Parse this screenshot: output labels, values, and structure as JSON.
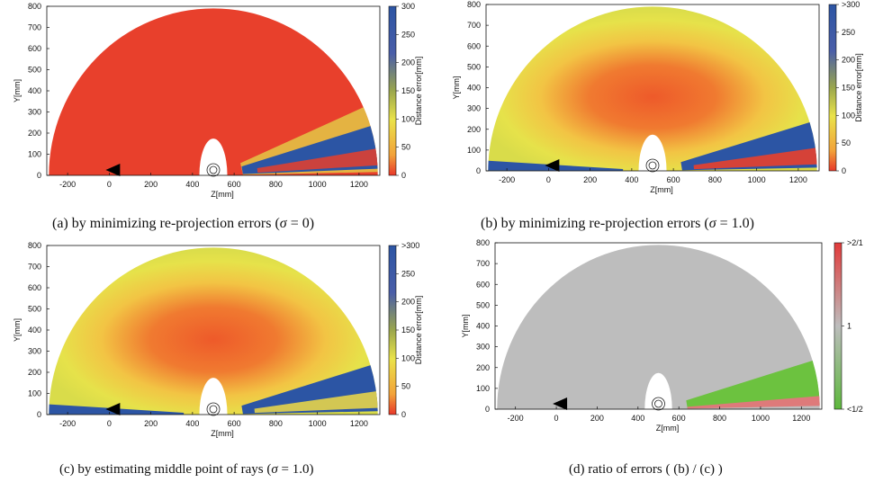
{
  "chart_data": [
    {
      "type": "heatmap",
      "panel": "a",
      "caption_prefix": "(a) by minimizing re-projection errors (",
      "caption_sigma": "σ",
      "caption_suffix": " = 0)",
      "xlabel": "Z[mm]",
      "ylabel": "Y[mm]",
      "xticks": [
        -200,
        0,
        200,
        400,
        600,
        800,
        1000,
        1200
      ],
      "yticks": [
        0,
        100,
        200,
        300,
        400,
        500,
        600,
        700,
        800
      ],
      "xlim": [
        -300,
        1300
      ],
      "ylim": [
        0,
        800
      ],
      "colorbar": {
        "label": "Distance error[mm]",
        "ticks": [
          "0",
          "50",
          "100",
          "150",
          "200",
          "250",
          "300"
        ],
        "range": [
          0,
          300
        ],
        "palette": [
          "#e8382a",
          "#f2a23a",
          "#eae34a",
          "#9aa64d",
          "#4a5ea8",
          "#2c55a4"
        ]
      },
      "regions": [
        {
          "name": "fan interior",
          "value": 5
        },
        {
          "name": "low-angle wedge",
          "value": 300
        },
        {
          "name": "camera dead zone",
          "value": null
        }
      ]
    },
    {
      "type": "heatmap",
      "panel": "b",
      "caption_prefix": "(b) by minimizing re-projection errors (",
      "caption_sigma": "σ",
      "caption_suffix": " = 1.0)",
      "xlabel": "Z[mm]",
      "ylabel": "Y[mm]",
      "xticks": [
        -200,
        0,
        200,
        400,
        600,
        800,
        1000,
        1200
      ],
      "yticks": [
        0,
        100,
        200,
        300,
        400,
        500,
        600,
        700,
        800
      ],
      "xlim": [
        -300,
        1300
      ],
      "ylim": [
        0,
        800
      ],
      "colorbar": {
        "label": "Distance error[mm]",
        "ticks": [
          "0",
          "50",
          "100",
          "150",
          "200",
          "250",
          ">300"
        ],
        "range": [
          0,
          300
        ],
        "palette": [
          "#e8382a",
          "#f2a23a",
          "#eae34a",
          "#9aa64d",
          "#4a5ea8",
          "#2c55a4"
        ]
      },
      "regions": [
        {
          "name": "center",
          "value": 20
        },
        {
          "name": "outer ring",
          "value": 90
        },
        {
          "name": "edges",
          "value": 300
        }
      ]
    },
    {
      "type": "heatmap",
      "panel": "c",
      "caption_prefix": "(c) by estimating middle point of rays (",
      "caption_sigma": "σ",
      "caption_suffix": " = 1.0)",
      "xlabel": "Z[mm]",
      "ylabel": "Y[mm]",
      "xticks": [
        -200,
        0,
        200,
        400,
        600,
        800,
        1000,
        1200
      ],
      "yticks": [
        0,
        100,
        200,
        300,
        400,
        500,
        600,
        700,
        800
      ],
      "xlim": [
        -300,
        1300
      ],
      "ylim": [
        0,
        800
      ],
      "colorbar": {
        "label": "Distance error[mm]",
        "ticks": [
          "0",
          "50",
          "100",
          "150",
          "200",
          "250",
          ">300"
        ],
        "range": [
          0,
          300
        ],
        "palette": [
          "#e8382a",
          "#f2a23a",
          "#eae34a",
          "#9aa64d",
          "#4a5ea8",
          "#2c55a4"
        ]
      },
      "regions": [
        {
          "name": "center",
          "value": 20
        },
        {
          "name": "outer ring",
          "value": 90
        },
        {
          "name": "edges",
          "value": 300
        }
      ]
    },
    {
      "type": "heatmap",
      "panel": "d",
      "caption_prefix": "(d) ratio of errors ( (b) / (c) )",
      "caption_sigma": "",
      "caption_suffix": "",
      "xlabel": "Z[mm]",
      "ylabel": "Y[mm]",
      "xticks": [
        -200,
        0,
        200,
        400,
        600,
        800,
        1000,
        1200
      ],
      "yticks": [
        0,
        100,
        200,
        300,
        400,
        500,
        600,
        700,
        800
      ],
      "xlim": [
        -300,
        1300
      ],
      "ylim": [
        0,
        800
      ],
      "colorbar": {
        "label": "",
        "ticks": [
          "<1/2",
          "1",
          ">2/1"
        ],
        "range": [
          0.5,
          2
        ],
        "palette": [
          "#5db83c",
          "#bdbdbd",
          "#e23a3a"
        ]
      },
      "regions": [
        {
          "name": "fan interior",
          "value": 1
        },
        {
          "name": "lower-right band",
          "value": 0.5
        },
        {
          "name": "bottom-right strip",
          "value": 2
        }
      ]
    }
  ]
}
